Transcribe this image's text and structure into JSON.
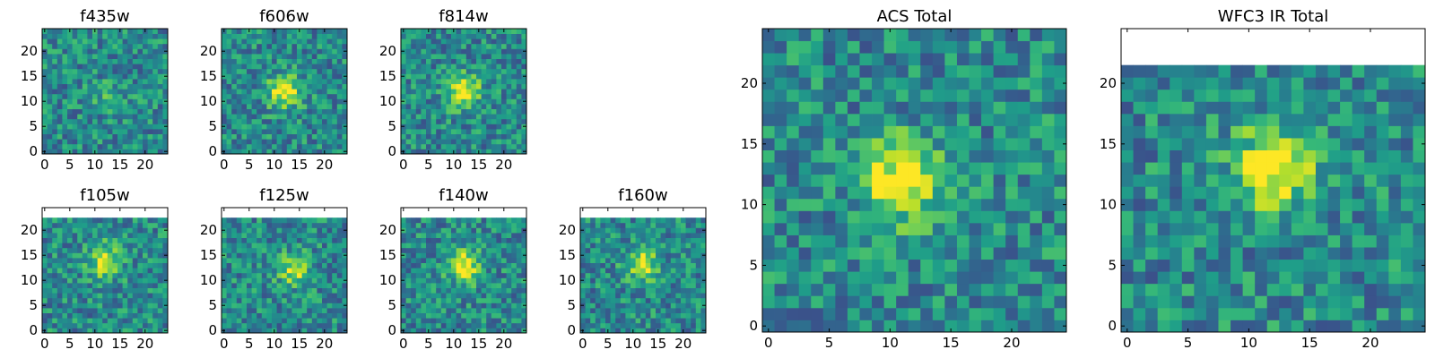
{
  "colormap": "viridis",
  "colors": {
    "low": "#440154",
    "mid": "#21918c",
    "high": "#fde725",
    "blank": "#ffffff"
  },
  "chart_data": [
    {
      "type": "heatmap",
      "title": "f435w",
      "xticks": [
        "0",
        "5",
        "10",
        "15",
        "20"
      ],
      "yticks": [
        "0",
        "5",
        "10",
        "15",
        "20"
      ],
      "xlim": [
        0,
        25
      ],
      "ylim": [
        0,
        25
      ],
      "grid": false,
      "blank_top_rows": 0,
      "source_blob": [
        13,
        11,
        0.15
      ],
      "seed": 11
    },
    {
      "type": "heatmap",
      "title": "f606w",
      "xticks": [
        "0",
        "5",
        "10",
        "15",
        "20"
      ],
      "yticks": [
        "0",
        "5",
        "10",
        "15",
        "20"
      ],
      "xlim": [
        0,
        25
      ],
      "ylim": [
        0,
        25
      ],
      "grid": false,
      "blank_top_rows": 0,
      "source_blob": [
        12,
        12,
        0.55
      ],
      "seed": 23
    },
    {
      "type": "heatmap",
      "title": "f814w",
      "xticks": [
        "0",
        "5",
        "10",
        "15",
        "20"
      ],
      "yticks": [
        "0",
        "5",
        "10",
        "15",
        "20"
      ],
      "xlim": [
        0,
        25
      ],
      "ylim": [
        0,
        25
      ],
      "grid": false,
      "blank_top_rows": 0,
      "source_blob": [
        12,
        12,
        0.55
      ],
      "seed": 37
    },
    {
      "type": "heatmap",
      "title": "f105w",
      "xticks": [
        "0",
        "5",
        "10",
        "15",
        "20"
      ],
      "yticks": [
        "0",
        "5",
        "10",
        "15",
        "20"
      ],
      "xlim": [
        0,
        25
      ],
      "ylim": [
        0,
        25
      ],
      "grid": false,
      "blank_top_rows": 2,
      "source_blob": [
        12,
        14,
        0.5
      ],
      "seed": 41
    },
    {
      "type": "heatmap",
      "title": "f125w",
      "xticks": [
        "0",
        "5",
        "10",
        "15",
        "20"
      ],
      "yticks": [
        "0",
        "5",
        "10",
        "15",
        "20"
      ],
      "xlim": [
        0,
        25
      ],
      "ylim": [
        0,
        25
      ],
      "grid": false,
      "blank_top_rows": 2,
      "source_blob": [
        14,
        12,
        0.4
      ],
      "seed": 53
    },
    {
      "type": "heatmap",
      "title": "f140w",
      "xticks": [
        "0",
        "5",
        "10",
        "15",
        "20"
      ],
      "yticks": [
        "0",
        "5",
        "10",
        "15",
        "20"
      ],
      "xlim": [
        0,
        25
      ],
      "ylim": [
        0,
        25
      ],
      "grid": false,
      "blank_top_rows": 2,
      "source_blob": [
        12,
        13,
        0.55
      ],
      "seed": 67
    },
    {
      "type": "heatmap",
      "title": "f160w",
      "xticks": [
        "0",
        "5",
        "10",
        "15",
        "20"
      ],
      "yticks": [
        "0",
        "5",
        "10",
        "15",
        "20"
      ],
      "xlim": [
        0,
        25
      ],
      "ylim": [
        0,
        25
      ],
      "grid": false,
      "blank_top_rows": 2,
      "source_blob": [
        12,
        13,
        0.45
      ],
      "seed": 79
    },
    {
      "type": "heatmap",
      "title": "ACS Total",
      "xticks": [
        "0",
        "5",
        "10",
        "15",
        "20"
      ],
      "yticks": [
        "0",
        "5",
        "10",
        "15",
        "20"
      ],
      "xlim": [
        0,
        25
      ],
      "ylim": [
        0,
        25
      ],
      "grid": false,
      "blank_top_rows": 0,
      "source_blob": [
        11,
        12,
        0.6
      ],
      "seed": 97
    },
    {
      "type": "heatmap",
      "title": "WFC3 IR Total",
      "xticks": [
        "0",
        "5",
        "10",
        "15",
        "20"
      ],
      "yticks": [
        "0",
        "5",
        "10",
        "15",
        "20"
      ],
      "xlim": [
        0,
        25
      ],
      "ylim": [
        0,
        25
      ],
      "grid": false,
      "blank_top_rows": 3,
      "source_blob": [
        12,
        13,
        0.6
      ],
      "seed": 113
    }
  ]
}
